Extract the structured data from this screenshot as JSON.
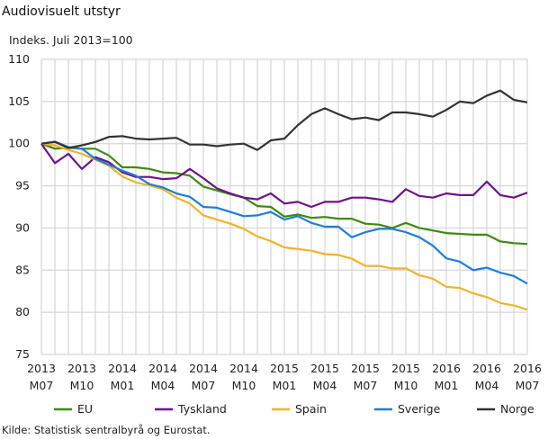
{
  "title": "Audiovisuelt utstyr",
  "source": "Kilde: Statistisk sentralbyrå og Eurostat.",
  "chart_data": {
    "type": "line",
    "title": "Audiovisuelt utstyr",
    "ylabel": "Indeks. Juli 2013=100",
    "xlabel": "",
    "ylim": [
      75,
      110
    ],
    "yticks": [
      75,
      80,
      85,
      90,
      95,
      100,
      105,
      110
    ],
    "grid": true,
    "legend": "bottom",
    "x": [
      "2013M07",
      "2013M08",
      "2013M09",
      "2013M10",
      "2013M11",
      "2013M12",
      "2014M01",
      "2014M02",
      "2014M03",
      "2014M04",
      "2014M05",
      "2014M06",
      "2014M07",
      "2014M08",
      "2014M09",
      "2014M10",
      "2014M11",
      "2014M12",
      "2015M01",
      "2015M02",
      "2015M03",
      "2015M04",
      "2015M05",
      "2015M06",
      "2015M07",
      "2015M08",
      "2015M09",
      "2015M10",
      "2015M11",
      "2015M12",
      "2016M01",
      "2016M02",
      "2016M03",
      "2016M04",
      "2016M05",
      "2016M06",
      "2016M07"
    ],
    "xticks": [
      {
        "year": "2013",
        "month": "M07",
        "index": 0
      },
      {
        "year": "2013",
        "month": "M10",
        "index": 3
      },
      {
        "year": "2014",
        "month": "M01",
        "index": 6
      },
      {
        "year": "2014",
        "month": "M04",
        "index": 9
      },
      {
        "year": "2014",
        "month": "M07",
        "index": 12
      },
      {
        "year": "2014",
        "month": "M10",
        "index": 15
      },
      {
        "year": "2015",
        "month": "M01",
        "index": 18
      },
      {
        "year": "2015",
        "month": "M04",
        "index": 21
      },
      {
        "year": "2015",
        "month": "M07",
        "index": 24
      },
      {
        "year": "2015",
        "month": "M10",
        "index": 27
      },
      {
        "year": "2016",
        "month": "M01",
        "index": 30
      },
      {
        "year": "2016",
        "month": "M04",
        "index": 33
      },
      {
        "year": "2016",
        "month": "M07",
        "index": 36
      }
    ],
    "series": [
      {
        "name": "EU",
        "color": "#3e8a0e",
        "values": [
          100,
          99.4,
          99.5,
          99.4,
          99.4,
          98.6,
          97.2,
          97.2,
          97.0,
          96.6,
          96.5,
          96.2,
          94.9,
          94.45,
          94.0,
          93.6,
          92.6,
          92.5,
          91.35,
          91.6,
          91.2,
          91.3,
          91.1,
          91.1,
          90.5,
          90.4,
          90.0,
          90.6,
          90.0,
          89.7,
          89.4,
          89.3,
          89.2,
          89.2,
          88.4,
          88.2,
          88.1
        ]
      },
      {
        "name": "Tyskland",
        "color": "#6e1189",
        "values": [
          100,
          97.7,
          98.8,
          97.0,
          98.4,
          97.8,
          96.6,
          96.05,
          96.05,
          95.8,
          95.9,
          97.0,
          95.9,
          94.7,
          94.1,
          93.6,
          93.4,
          94.1,
          92.9,
          93.1,
          92.5,
          93.1,
          93.1,
          93.6,
          93.6,
          93.4,
          93.1,
          94.6,
          93.8,
          93.6,
          94.1,
          93.9,
          93.9,
          95.5,
          93.9,
          93.6,
          94.2
        ]
      },
      {
        "name": "Spain",
        "color": "#f0b42a",
        "values": [
          100,
          99.8,
          99.25,
          98.8,
          98.1,
          97.4,
          96.1,
          95.4,
          95.05,
          94.6,
          93.6,
          92.9,
          91.5,
          91.0,
          90.5,
          89.9,
          89.0,
          88.45,
          87.7,
          87.5,
          87.3,
          86.9,
          86.8,
          86.35,
          85.5,
          85.5,
          85.2,
          85.2,
          84.4,
          84.0,
          83.0,
          82.9,
          82.25,
          81.8,
          81.1,
          80.8,
          80.3
        ]
      },
      {
        "name": "Sverige",
        "color": "#1b7fd6",
        "values": [
          100,
          100.25,
          99.6,
          99.4,
          98.2,
          97.5,
          96.8,
          96.2,
          95.2,
          94.8,
          94.1,
          93.7,
          92.5,
          92.4,
          91.9,
          91.4,
          91.5,
          91.9,
          91.0,
          91.4,
          90.6,
          90.15,
          90.15,
          88.9,
          89.5,
          89.9,
          89.9,
          89.5,
          88.9,
          87.9,
          86.4,
          86.0,
          85.0,
          85.3,
          84.7,
          84.3,
          83.4
        ]
      },
      {
        "name": "Norge",
        "color": "#333333",
        "values": [
          100,
          100.2,
          99.5,
          99.8,
          100.2,
          100.8,
          100.9,
          100.6,
          100.5,
          100.6,
          100.7,
          99.9,
          99.9,
          99.7,
          99.9,
          100.0,
          99.25,
          100.4,
          100.6,
          102.2,
          103.5,
          104.2,
          103.5,
          102.9,
          103.1,
          102.8,
          103.7,
          103.7,
          103.5,
          103.2,
          104.0,
          105.0,
          104.8,
          105.7,
          106.3,
          105.2,
          104.9
        ]
      }
    ]
  }
}
